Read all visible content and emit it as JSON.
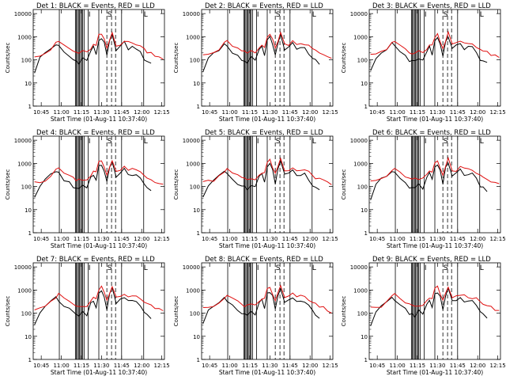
{
  "panels": [
    {
      "title": "Det 1: BLACK = Events, RED = LLD"
    },
    {
      "title": "Det 2: BLACK = Events, RED = LLD"
    },
    {
      "title": "Det 3: BLACK = Events, RED = LLD"
    },
    {
      "title": "Det 4: BLACK = Events, RED = LLD"
    },
    {
      "title": "Det 5: BLACK = Events, RED = LLD"
    },
    {
      "title": "Det 6: BLACK = Events, RED = LLD"
    },
    {
      "title": "Det 7: BLACK = Events, RED = LLD"
    },
    {
      "title": "Det 8: BLACK = Events, RED = LLD"
    },
    {
      "title": "Det 9: BLACK = Events, RED = LLD"
    }
  ],
  "chart_data": {
    "type": "line",
    "layout": "3x3 grid",
    "xlabel": "Start Time (01-Aug-11 10:37:40)",
    "ylabel": "Counts/sec",
    "x_tick_labels": [
      "10:45",
      "11:00",
      "11:15",
      "11:30",
      "11:45",
      "12:00",
      "12:15"
    ],
    "x_ticks_min": [
      45,
      60,
      75,
      90,
      105,
      120,
      135
    ],
    "xlim_min": [
      39,
      137
    ],
    "y_scale": "log",
    "ylim": [
      1,
      15000
    ],
    "y_tick_values": [
      1,
      10,
      100,
      1000,
      10000
    ],
    "y_tick_labels": [
      "1",
      "10",
      "100",
      "1000",
      "10000"
    ],
    "markers": {
      "solid_lines_min": [
        58.5,
        70.5,
        71.2,
        72.0,
        72.8,
        73.6,
        74.4,
        75.2,
        76.0,
        77.0,
        80.0,
        88.0,
        105.0,
        121.5
      ],
      "dashed_lines_min": [
        94.0,
        97.5,
        100.5
      ],
      "letters": [
        {
          "text": "I",
          "at_min": 81.0
        },
        {
          "text": "S",
          "at_min": 96.0
        },
        {
          "text": "L",
          "at_min": 123.0
        }
      ]
    },
    "series": [
      {
        "name": "Events",
        "color": "#000000",
        "x": [
          40,
          44,
          48,
          52,
          56,
          58,
          62,
          66,
          69,
          71,
          73,
          76,
          79,
          82,
          84,
          86,
          88,
          90,
          92,
          94,
          96,
          98,
          101,
          104,
          107,
          110,
          113,
          116,
          119,
          122,
          124,
          127
        ],
        "y": [
          30,
          120,
          200,
          300,
          480,
          380,
          200,
          140,
          100,
          90,
          80,
          120,
          90,
          250,
          350,
          180,
          700,
          900,
          500,
          150,
          600,
          1100,
          300,
          380,
          550,
          300,
          350,
          330,
          200,
          110,
          90,
          70
        ]
      },
      {
        "name": "LLD",
        "color": "#e01010",
        "x": [
          40,
          44,
          48,
          52,
          56,
          58,
          62,
          66,
          69,
          71,
          73,
          76,
          79,
          82,
          84,
          86,
          88,
          90,
          92,
          94,
          96,
          98,
          101,
          104,
          107,
          110,
          113,
          116,
          119,
          122,
          124,
          127,
          130,
          133,
          136
        ],
        "y": [
          160,
          170,
          200,
          280,
          500,
          620,
          430,
          300,
          230,
          210,
          200,
          220,
          200,
          320,
          430,
          400,
          1100,
          1300,
          700,
          320,
          700,
          1500,
          450,
          500,
          650,
          550,
          520,
          500,
          400,
          280,
          240,
          200,
          170,
          140,
          120
        ]
      }
    ]
  }
}
